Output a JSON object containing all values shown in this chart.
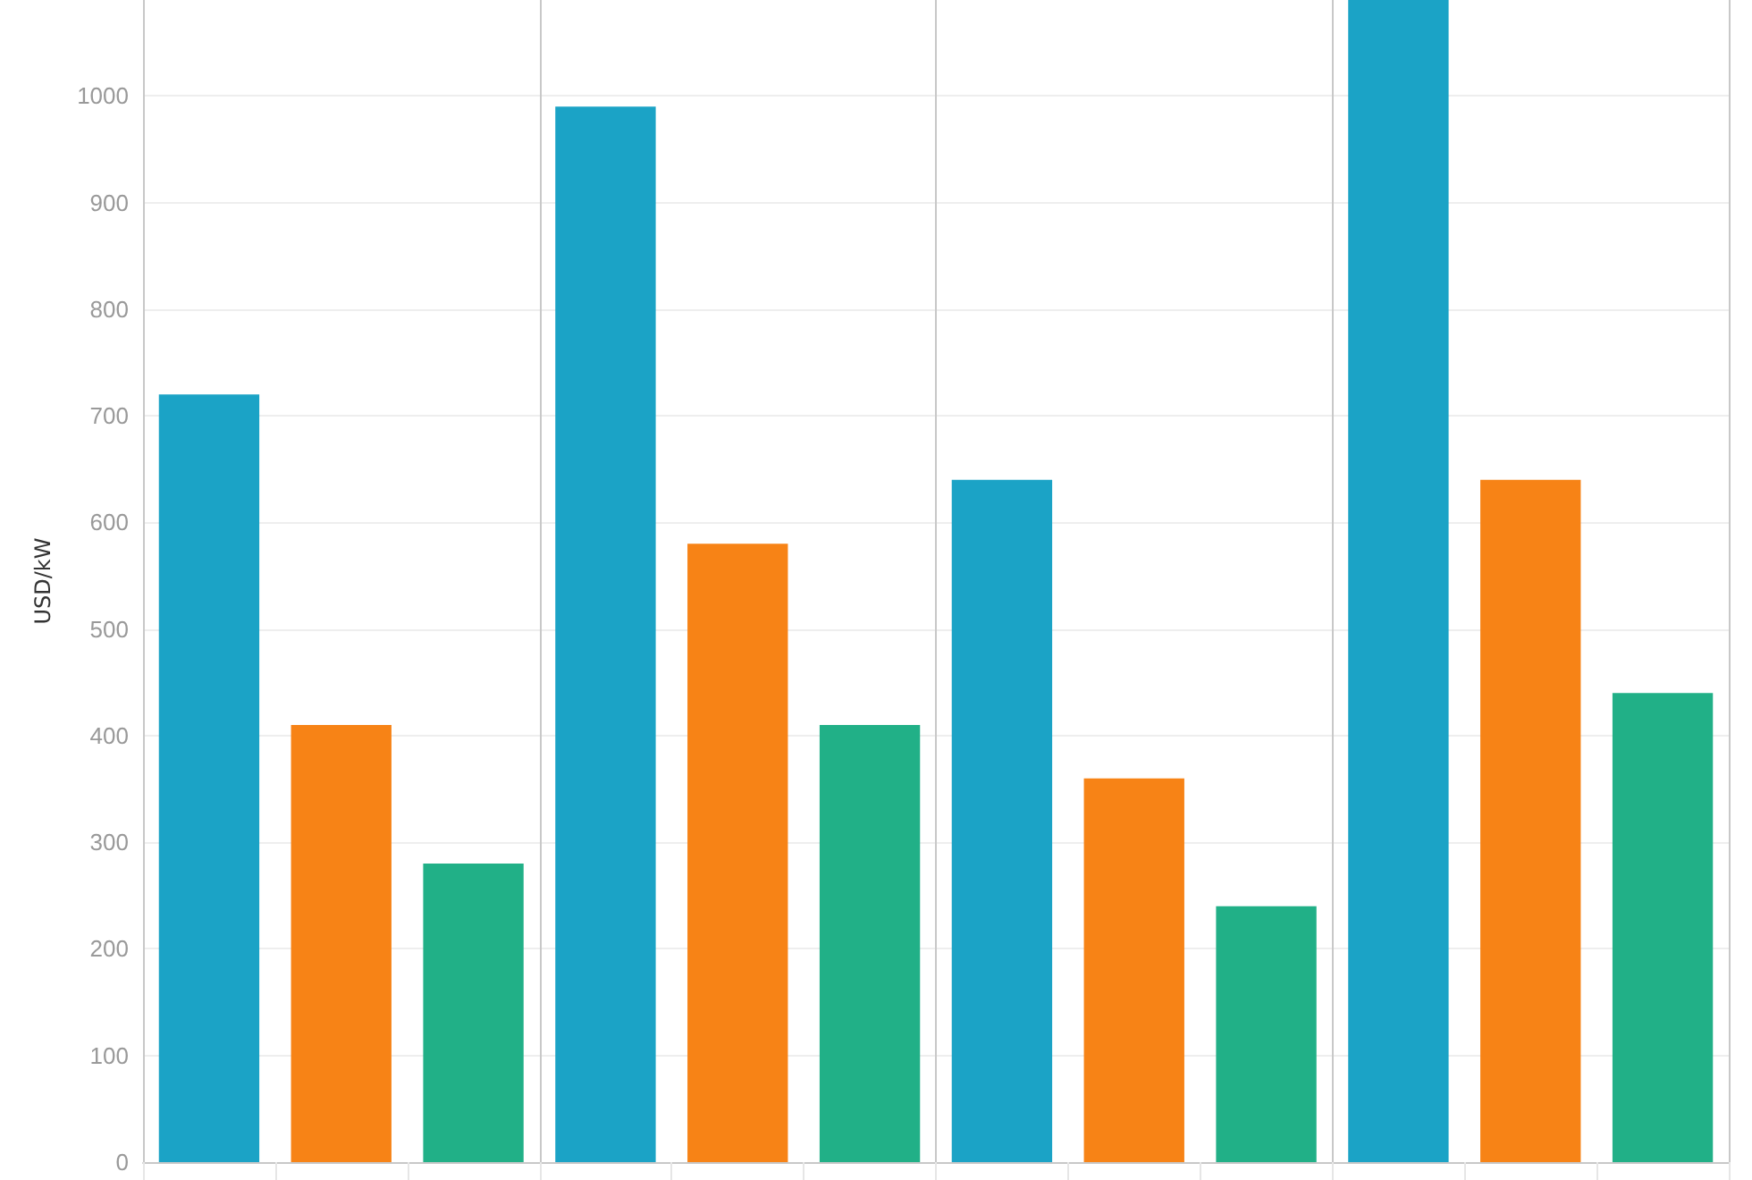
{
  "chart_data": {
    "type": "bar",
    "ylabel": "USD/kW",
    "categories": [
      null,
      null,
      null,
      null,
      null,
      null,
      null,
      null,
      null,
      null,
      null,
      null
    ],
    "values": [
      720,
      410,
      280,
      990,
      580,
      410,
      640,
      360,
      240,
      1090,
      640,
      440
    ],
    "colors": [
      "#1ba3c6",
      "#f78316",
      "#21b087",
      "#1ba3c6",
      "#f78316",
      "#21b087",
      "#1ba3c6",
      "#f78316",
      "#21b087",
      "#1ba3c6",
      "#f78316",
      "#21b087"
    ],
    "ylim": [
      0,
      1090
    ],
    "yticks": [
      0,
      100,
      200,
      300,
      400,
      500,
      600,
      700,
      800,
      900,
      1000
    ],
    "grid": "y"
  }
}
